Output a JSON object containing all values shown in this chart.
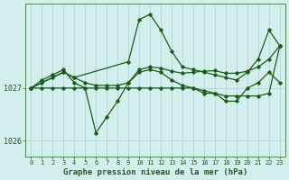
{
  "title": "Graphe pression niveau de la mer (hPa)",
  "bg_color": "#d4eeee",
  "line_color": "#1a5c1a",
  "grid_color": "#b0d0d0",
  "x_ticks": [
    0,
    1,
    2,
    3,
    4,
    5,
    6,
    7,
    8,
    9,
    10,
    11,
    12,
    13,
    14,
    15,
    16,
    17,
    18,
    19,
    20,
    21,
    22,
    23
  ],
  "ylim": [
    1025.7,
    1028.6
  ],
  "y_ticks": [
    1026,
    1027
  ],
  "series": [
    {
      "x": [
        0,
        1,
        2,
        3,
        4,
        5,
        6,
        7,
        8,
        9,
        10,
        11,
        12,
        13,
        14,
        15,
        16,
        17,
        18,
        19,
        20,
        21,
        22,
        23
      ],
      "y": [
        1027.0,
        1027.15,
        1027.25,
        1027.35,
        1027.1,
        1027.0,
        1026.15,
        1026.45,
        1026.75,
        1027.1,
        1027.3,
        1027.35,
        1027.3,
        1027.15,
        1027.05,
        1027.0,
        1026.95,
        1026.9,
        1026.75,
        1026.75,
        1027.0,
        1027.1,
        1027.3,
        1027.1
      ]
    },
    {
      "x": [
        0,
        3,
        4,
        9,
        10,
        11,
        12,
        13,
        14,
        15,
        16,
        17,
        18,
        19,
        20,
        21,
        22,
        23
      ],
      "y": [
        1027.0,
        1027.3,
        1027.2,
        1027.5,
        1028.3,
        1028.4,
        1028.1,
        1027.7,
        1027.4,
        1027.35,
        1027.3,
        1027.25,
        1027.2,
        1027.15,
        1027.3,
        1027.55,
        1028.1,
        1027.8
      ]
    },
    {
      "x": [
        0,
        1,
        2,
        3,
        4,
        5,
        6,
        7,
        8,
        9,
        10,
        11,
        12,
        13,
        14,
        15,
        16,
        17,
        18,
        19,
        20,
        21,
        22,
        23
      ],
      "y": [
        1027.0,
        1027.1,
        1027.2,
        1027.3,
        1027.2,
        1027.1,
        1027.05,
        1027.05,
        1027.05,
        1027.1,
        1027.35,
        1027.4,
        1027.38,
        1027.32,
        1027.28,
        1027.3,
        1027.32,
        1027.33,
        1027.28,
        1027.28,
        1027.32,
        1027.4,
        1027.55,
        1027.8
      ]
    },
    {
      "x": [
        0,
        1,
        2,
        3,
        4,
        5,
        6,
        7,
        8,
        9,
        10,
        11,
        12,
        13,
        14,
        15,
        16,
        17,
        18,
        19,
        20,
        21,
        22,
        23
      ],
      "y": [
        1027.0,
        1027.0,
        1027.0,
        1027.0,
        1027.0,
        1027.0,
        1027.0,
        1027.0,
        1027.0,
        1027.0,
        1027.0,
        1027.0,
        1027.0,
        1027.0,
        1027.0,
        1027.0,
        1026.9,
        1026.9,
        1026.85,
        1026.85,
        1026.85,
        1026.85,
        1026.9,
        1027.8
      ]
    }
  ],
  "marker": "D",
  "markersize": 1.8,
  "linewidth": 0.9,
  "tick_color": "#1a5c1a",
  "tick_fontsize": 5,
  "xlabel_fontsize": 6.5
}
